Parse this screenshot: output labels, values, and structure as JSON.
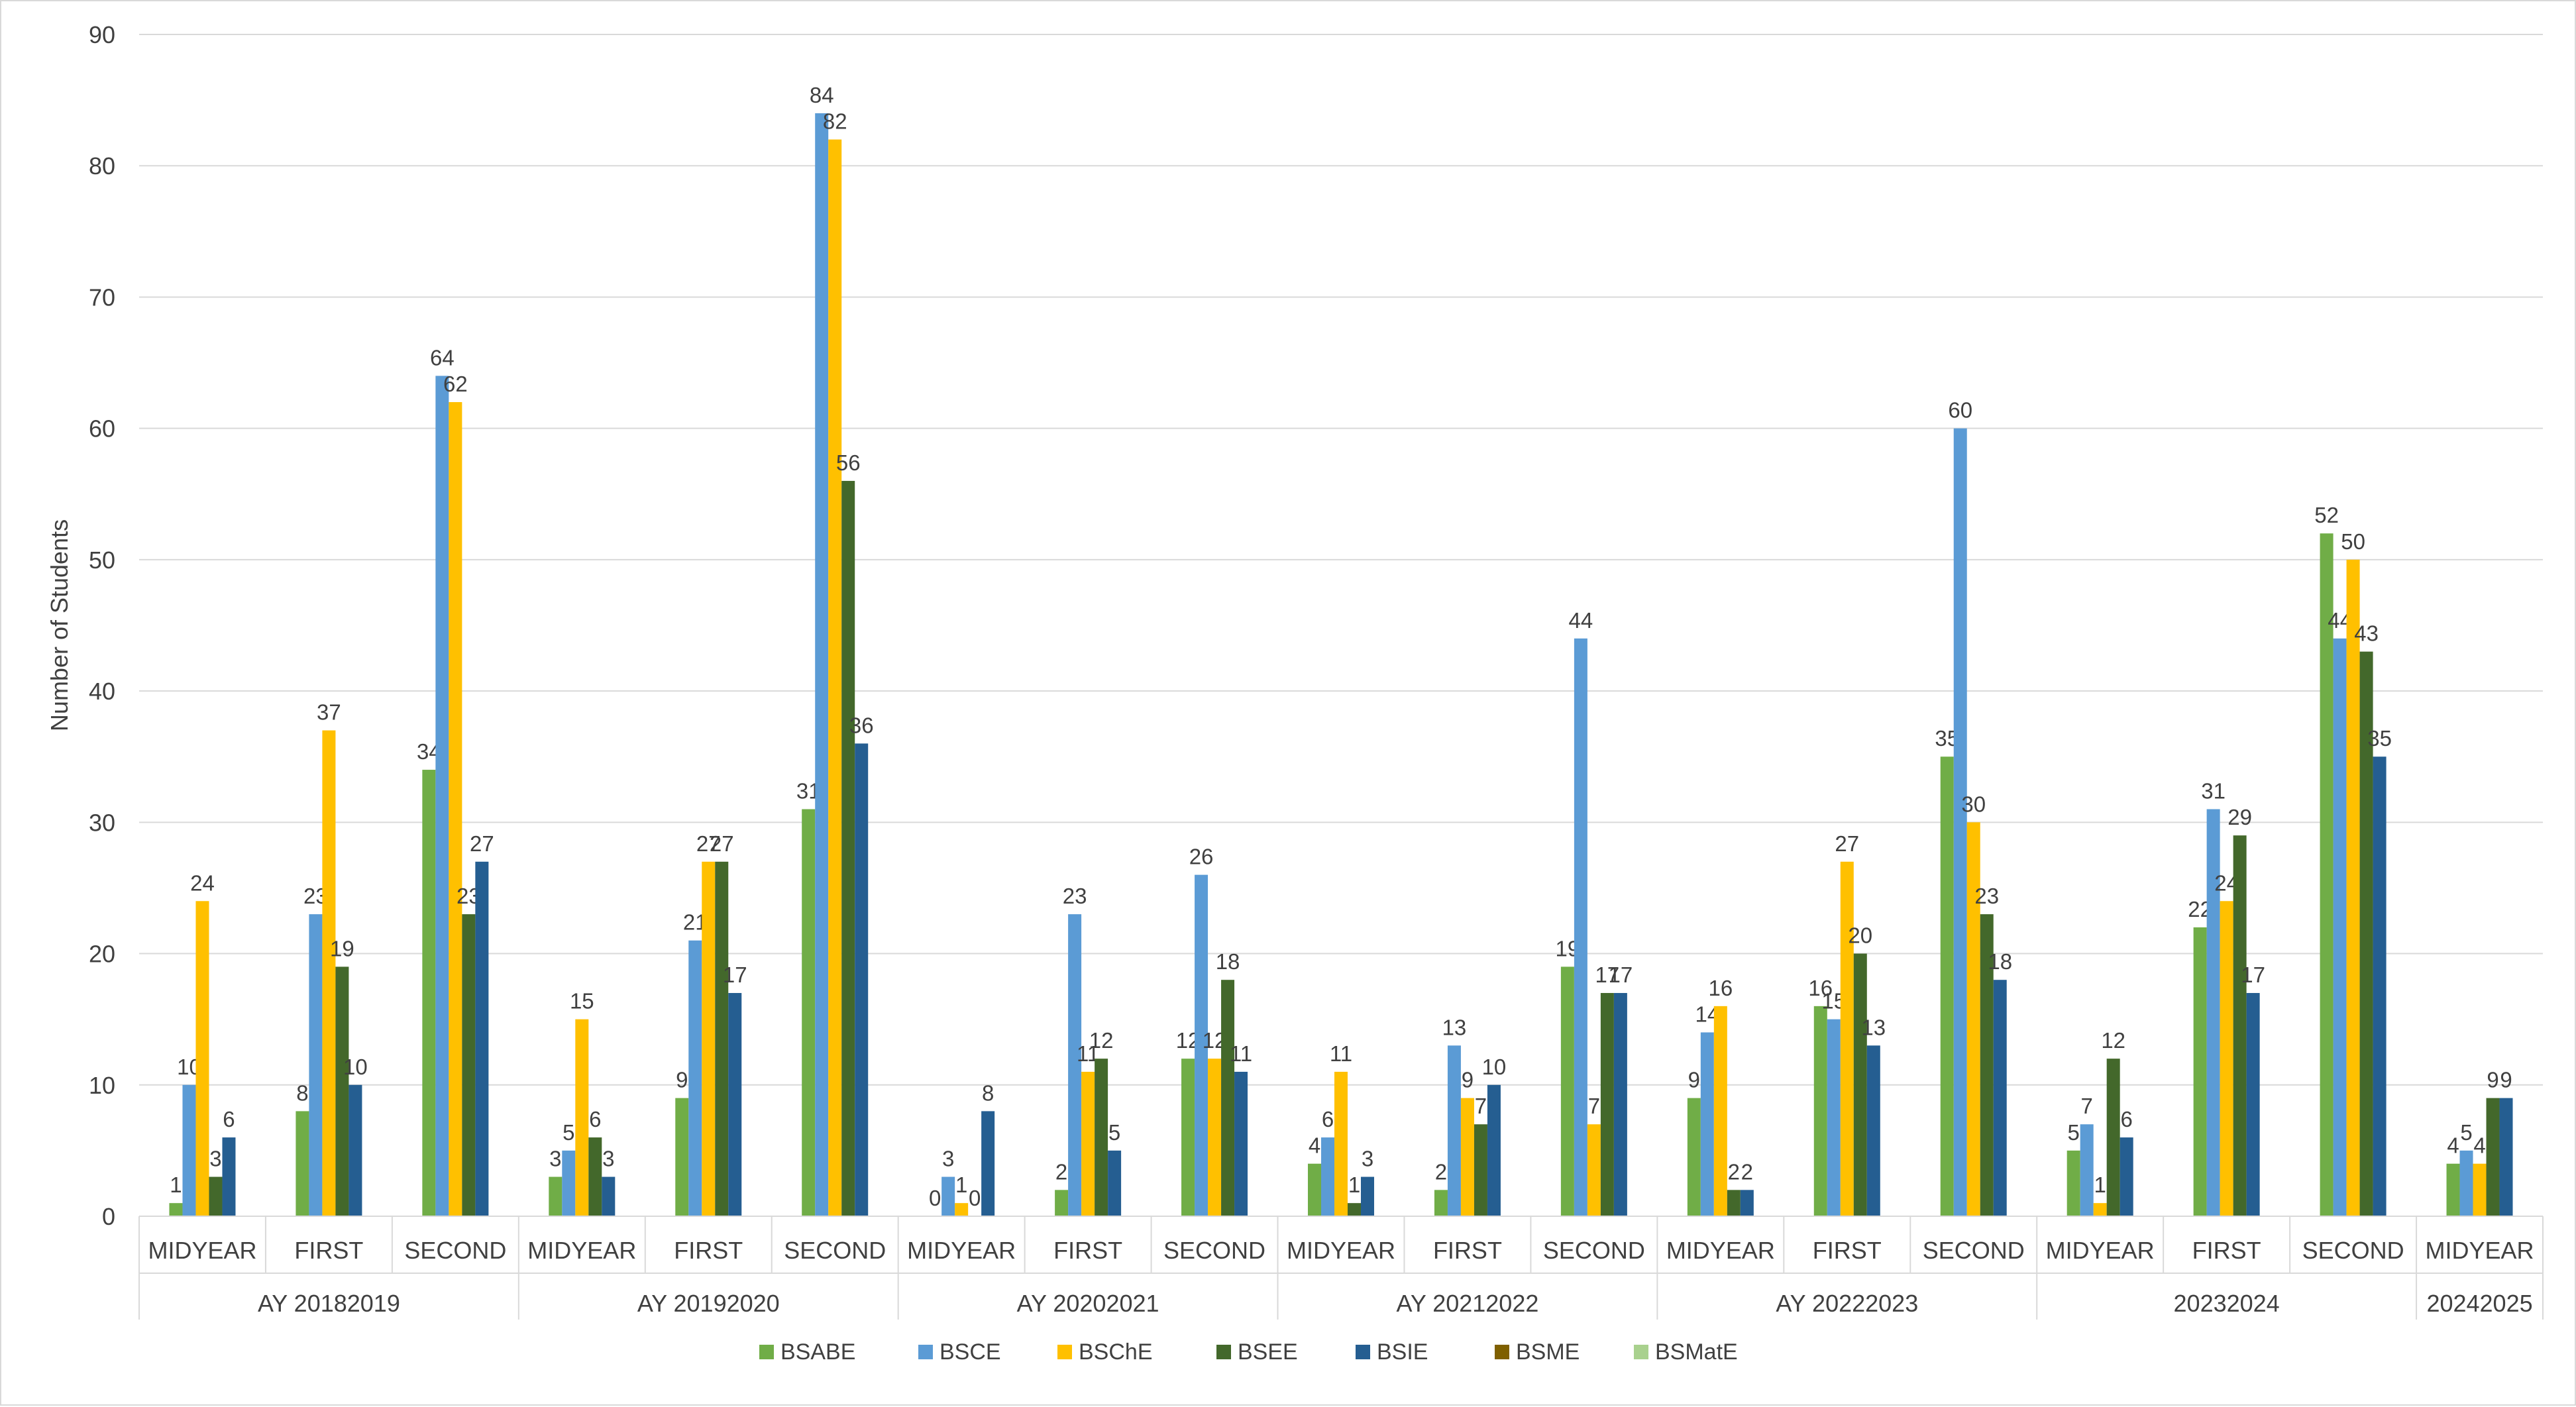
{
  "chart_data": {
    "type": "bar",
    "title": "",
    "xlabel": "",
    "ylabel": "Number of Students",
    "ylim": [
      0,
      90
    ],
    "ytick_step": 10,
    "grid": true,
    "legend_position": "bottom",
    "groups": [
      {
        "label": "AY 20182019",
        "categories": [
          "MIDYEAR",
          "FIRST",
          "SECOND"
        ]
      },
      {
        "label": "AY 20192020",
        "categories": [
          "MIDYEAR",
          "FIRST",
          "SECOND"
        ]
      },
      {
        "label": "AY 20202021",
        "categories": [
          "MIDYEAR",
          "FIRST",
          "SECOND"
        ]
      },
      {
        "label": "AY 20212022",
        "categories": [
          "MIDYEAR",
          "FIRST",
          "SECOND"
        ]
      },
      {
        "label": "AY 20222023",
        "categories": [
          "MIDYEAR",
          "FIRST",
          "SECOND"
        ]
      },
      {
        "label": "20232024",
        "categories": [
          "MIDYEAR",
          "FIRST",
          "SECOND"
        ]
      },
      {
        "label": "20242025",
        "categories": [
          "MIDYEAR"
        ]
      }
    ],
    "series": [
      {
        "name": "BSABE",
        "color": "#70ad47",
        "values": [
          1,
          8,
          34,
          3,
          9,
          31,
          0,
          2,
          12,
          4,
          2,
          19,
          9,
          16,
          35,
          5,
          22,
          52,
          4
        ]
      },
      {
        "name": "BSCE",
        "color": "#5b9bd5",
        "values": [
          10,
          23,
          64,
          5,
          21,
          84,
          3,
          23,
          26,
          6,
          13,
          44,
          14,
          15,
          60,
          7,
          31,
          44,
          5
        ]
      },
      {
        "name": "BSChE",
        "color": "#ffc000",
        "values": [
          24,
          37,
          62,
          15,
          27,
          82,
          1,
          11,
          12,
          11,
          9,
          7,
          16,
          27,
          30,
          1,
          24,
          50,
          4
        ]
      },
      {
        "name": "BSEE",
        "color": "#43682b",
        "values": [
          3,
          19,
          23,
          6,
          27,
          56,
          0,
          12,
          18,
          1,
          7,
          17,
          2,
          20,
          23,
          12,
          29,
          43,
          9
        ]
      },
      {
        "name": "BSIE",
        "color": "#255e91",
        "values": [
          6,
          10,
          27,
          3,
          17,
          36,
          8,
          5,
          11,
          3,
          10,
          17,
          2,
          13,
          18,
          6,
          17,
          35,
          9
        ]
      },
      {
        "name": "BSME",
        "color": "#7f6000",
        "values": [
          null,
          null,
          null,
          null,
          null,
          null,
          null,
          null,
          null,
          null,
          null,
          null,
          null,
          null,
          null,
          null,
          null,
          null,
          null
        ]
      },
      {
        "name": "BSMatE",
        "color": "#a9d18e",
        "values": [
          null,
          null,
          null,
          null,
          null,
          null,
          null,
          null,
          null,
          null,
          null,
          null,
          null,
          null,
          null,
          null,
          null,
          null,
          null
        ]
      }
    ]
  }
}
